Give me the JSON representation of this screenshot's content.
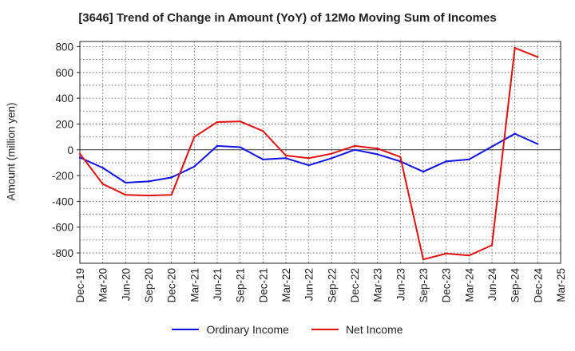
{
  "chart_data": {
    "type": "line",
    "title": "[3646]  Trend of Change in Amount (YoY) of 12Mo Moving Sum of Incomes",
    "ylabel": "Amount (million yen)",
    "xlabel": "",
    "ylim": [
      -880,
      840
    ],
    "yticks": [
      800,
      600,
      400,
      200,
      0,
      -200,
      -400,
      -600,
      -800
    ],
    "categories": [
      "Dec-19",
      "Mar-20",
      "Jun-20",
      "Sep-20",
      "Dec-20",
      "Mar-21",
      "Jun-21",
      "Sep-21",
      "Dec-21",
      "Mar-22",
      "Jun-22",
      "Sep-22",
      "Dec-22",
      "Mar-23",
      "Jun-23",
      "Sep-23",
      "Dec-23",
      "Mar-24",
      "Jun-24",
      "Sep-24",
      "Dec-24",
      "Mar-25"
    ],
    "grid": true,
    "legend_position": "bottom",
    "series": [
      {
        "name": "Ordinary Income",
        "color": "#1010e0",
        "values": [
          -60,
          -140,
          -255,
          -245,
          -215,
          -130,
          30,
          20,
          -75,
          -65,
          -120,
          -65,
          0,
          -35,
          -90,
          -170,
          -90,
          -75,
          25,
          125,
          45,
          null
        ]
      },
      {
        "name": "Net Income",
        "color": "#e01010",
        "values": [
          -30,
          -265,
          -350,
          -355,
          -350,
          100,
          215,
          220,
          145,
          -45,
          -65,
          -30,
          30,
          10,
          -55,
          -850,
          -805,
          -820,
          -740,
          790,
          720,
          null
        ]
      }
    ]
  }
}
